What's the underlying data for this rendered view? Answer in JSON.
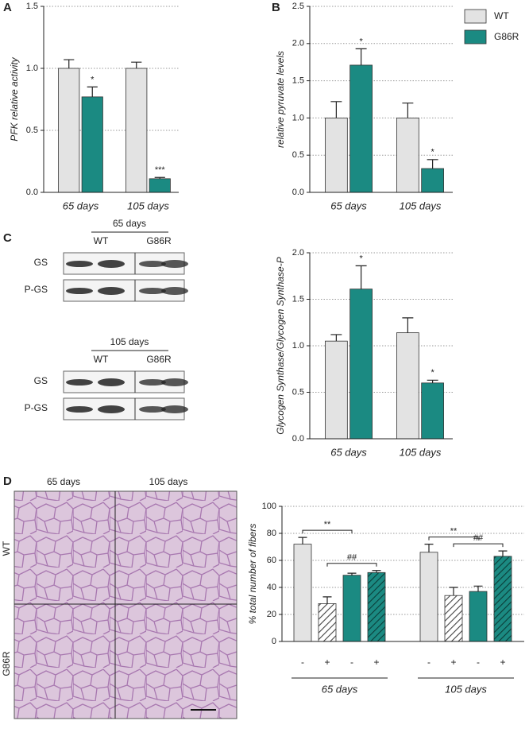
{
  "panel_labels": [
    "A",
    "B",
    "C",
    "D"
  ],
  "chart_data": [
    {
      "type": "bar",
      "y_label": "PFK relative activity",
      "categories": [
        "65 days",
        "105 days"
      ],
      "series": [
        {
          "color": "#e3e3e3",
          "values": [
            1.0,
            1.0
          ],
          "errors": [
            0.07,
            0.05
          ]
        },
        {
          "color": "#1b8a82",
          "values": [
            0.77,
            0.11
          ],
          "errors": [
            0.08,
            0.01
          ],
          "annotations": [
            "*",
            "***"
          ]
        }
      ],
      "ylim": [
        0,
        1.5
      ],
      "yticks": [
        {
          "value": 0,
          "label": "0.0"
        },
        0.5,
        {
          "value": 1,
          "label": "1.0"
        },
        1.5
      ],
      "grid": true
    },
    {
      "type": "bar",
      "y_label": "relative pyruvate levels",
      "categories": [
        "65 days",
        "105 days"
      ],
      "series": [
        {
          "name": "WT",
          "color": "#e3e3e3",
          "values": [
            1.0,
            1.0
          ],
          "errors": [
            0.22,
            0.2
          ]
        },
        {
          "name": "G86R",
          "color": "#1b8a82",
          "values": [
            1.71,
            0.32
          ],
          "errors": [
            0.22,
            0.12
          ],
          "annotations": [
            "*",
            "*"
          ]
        }
      ],
      "ylim": [
        0,
        2.5
      ],
      "yticks": [
        {
          "value": 0,
          "label": "0.0"
        },
        0.5,
        {
          "value": 1,
          "label": "1.0"
        },
        1.5,
        {
          "value": 2,
          "label": "2.0"
        },
        2.5
      ],
      "grid": true,
      "legend": "top-right"
    },
    {
      "type": "bar",
      "y_label": "Glycogen Synthase/Glycogen Synthase-P",
      "categories": [
        "65 days",
        "105 days"
      ],
      "series": [
        {
          "color": "#e3e3e3",
          "values": [
            1.05,
            1.14
          ],
          "errors": [
            0.07,
            0.16
          ]
        },
        {
          "color": "#1b8a82",
          "values": [
            1.61,
            0.6
          ],
          "errors": [
            0.25,
            0.03
          ],
          "annotations": [
            "*",
            "*"
          ]
        }
      ],
      "ylim": [
        0,
        2
      ],
      "yticks": [
        {
          "value": 0,
          "label": "0.0"
        },
        0.5,
        {
          "value": 1,
          "label": "1.0"
        },
        1.5,
        {
          "value": 2,
          "label": "2.0"
        }
      ],
      "grid": true
    },
    {
      "type": "bar",
      "y_label": "% total number of fibers",
      "categories": [
        "-",
        "+",
        "-",
        "+",
        "-",
        "+",
        "-",
        "+"
      ],
      "group_labels": [
        "65 days",
        "105 days"
      ],
      "values": [
        72,
        28,
        49,
        51,
        66,
        34,
        37,
        63
      ],
      "errors": [
        5,
        5,
        1.5,
        1.5,
        6,
        6,
        4,
        4
      ],
      "colors": [
        "#e3e3e3",
        "#ffffff",
        "#1b8a82",
        "#1b8a82",
        "#e3e3e3",
        "#ffffff",
        "#1b8a82",
        "#1b8a82"
      ],
      "hatched": [
        false,
        true,
        false,
        true,
        false,
        true,
        false,
        true
      ],
      "brackets": [
        "**",
        "##",
        "**",
        "##"
      ],
      "ylim": [
        0,
        100
      ],
      "yticks": [
        0,
        20,
        40,
        60,
        80,
        100
      ],
      "grid": true
    }
  ],
  "blot": {
    "groups": [
      {
        "title": "65 days",
        "lanes": [
          "WT",
          "G86R"
        ],
        "rows": [
          "GS",
          "P-GS"
        ]
      },
      {
        "title": "105 days",
        "lanes": [
          "WT",
          "G86R"
        ],
        "rows": [
          "GS",
          "P-GS"
        ]
      }
    ]
  },
  "histology": {
    "columns": [
      "65 days",
      "105 days"
    ],
    "rows": [
      "WT",
      "G86R"
    ]
  }
}
